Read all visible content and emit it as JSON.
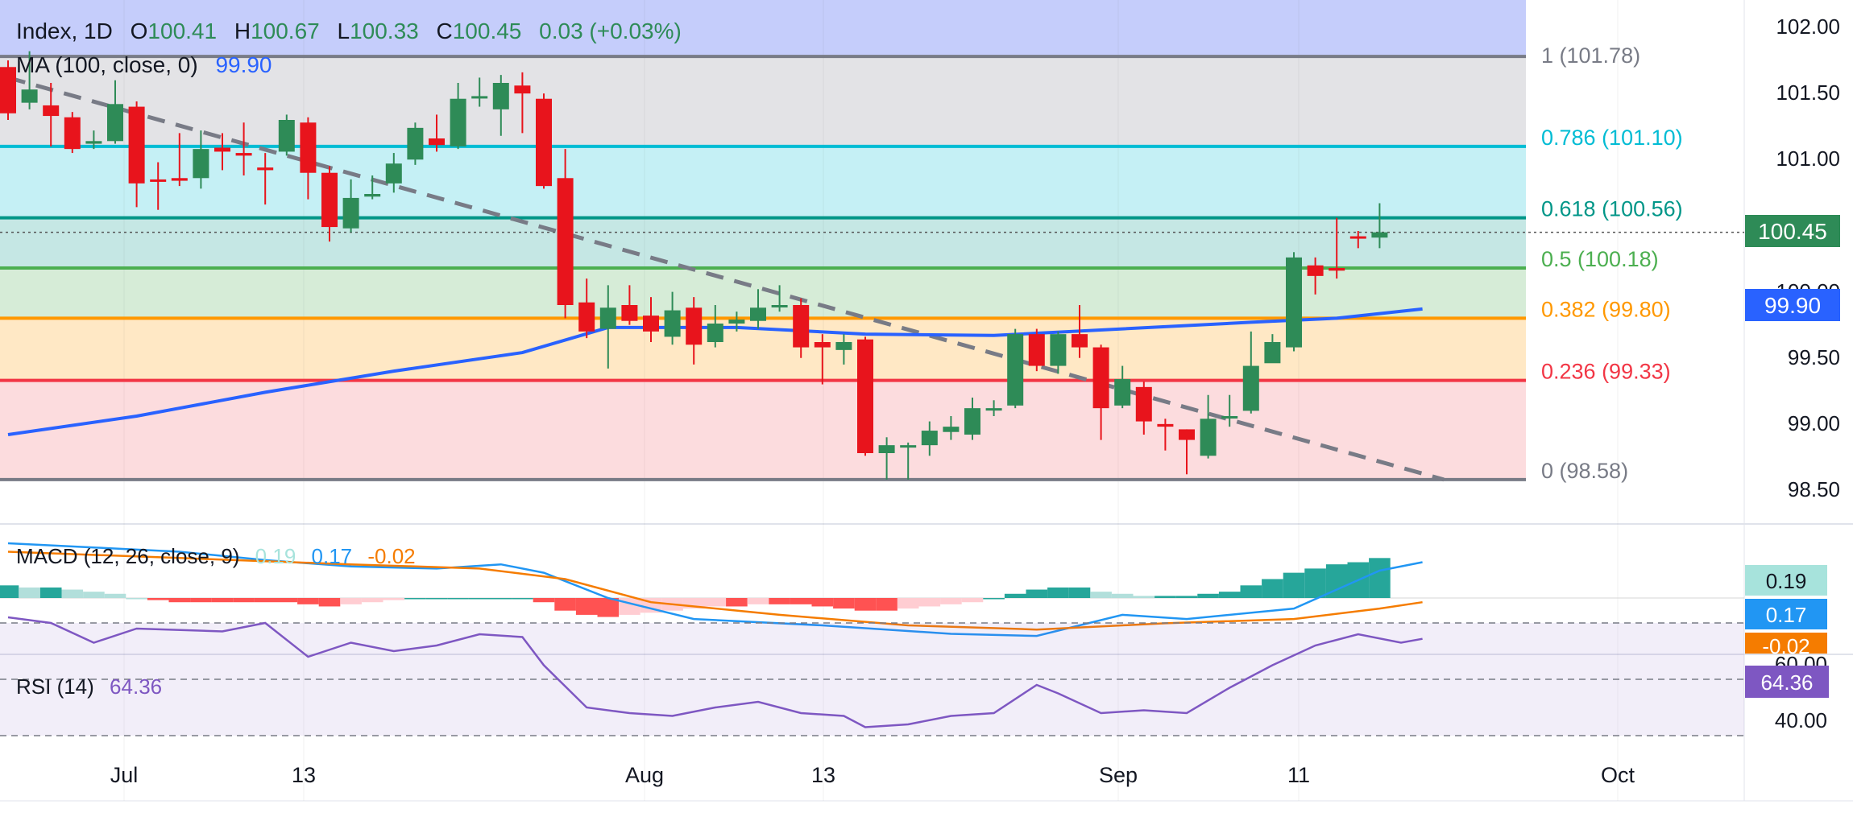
{
  "header": {
    "symbol": "Index, 1D",
    "o_label": "O",
    "o": "100.41",
    "h_label": "H",
    "h": "100.67",
    "l_label": "L",
    "l": "100.33",
    "c_label": "C",
    "c": "100.45",
    "change": "0.03 (+0.03%)"
  },
  "ma_legend": {
    "label": "MA (100, close, 0)",
    "value": "99.90"
  },
  "macd_legend": {
    "label": "MACD (12, 26, close, 9)",
    "hist": "0.19",
    "macd": "0.17",
    "signal": "-0.02"
  },
  "rsi_legend": {
    "label": "RSI (14)",
    "value": "64.36"
  },
  "price_axis": {
    "ticks": [
      "102.00",
      "101.50",
      "101.00",
      "100.00",
      "99.50",
      "99.00",
      "98.50"
    ]
  },
  "rsi_axis": {
    "ticks": [
      "60.00",
      "40.00"
    ]
  },
  "time_axis": {
    "labels": [
      "Jul",
      "13",
      "Aug",
      "13",
      "Sep",
      "11",
      "Oct"
    ]
  },
  "badges": {
    "price": "100.45",
    "ma": "99.90",
    "macd_hist": "0.19",
    "macd": "0.17",
    "macd_signal": "-0.02",
    "rsi": "64.36"
  },
  "colors": {
    "up": "#2e8b57",
    "down": "#e8141c",
    "ma": "#2962ff",
    "macd": "#2196f3",
    "signal": "#f57c00",
    "rsi": "#7e57c2",
    "fib_1": "#787b86",
    "fib_786": "#00bcd4",
    "fib_618": "#009688",
    "fib_5": "#4caf50",
    "fib_382": "#ff9800",
    "fib_236": "#f23645",
    "fib_0": "#787b86"
  },
  "chart_data": {
    "type": "candlestick",
    "price_range": [
      98.32,
      102.2
    ],
    "rsi_range": [
      30,
      80
    ],
    "fib_levels": [
      {
        "ratio": "1",
        "price": 101.78,
        "label": "1 (101.78)"
      },
      {
        "ratio": "0.786",
        "price": 101.1,
        "label": "0.786 (101.10)"
      },
      {
        "ratio": "0.618",
        "price": 100.56,
        "label": "0.618 (100.56)"
      },
      {
        "ratio": "0.5",
        "price": 100.18,
        "label": "0.5 (100.18)"
      },
      {
        "ratio": "0.382",
        "price": 99.8,
        "label": "0.382 (99.80)"
      },
      {
        "ratio": "0.236",
        "price": 99.33,
        "label": "0.236 (99.33)"
      },
      {
        "ratio": "0",
        "price": 98.58,
        "label": "0 (98.58)"
      }
    ],
    "trendline": {
      "start": {
        "bar": 0,
        "price": 101.62
      },
      "end": {
        "bar": 67,
        "price": 98.58
      }
    },
    "candles": [
      [
        101.7,
        101.35,
        101.75,
        101.3
      ],
      [
        101.43,
        101.53,
        101.82,
        101.38
      ],
      [
        101.41,
        101.33,
        101.58,
        101.1
      ],
      [
        101.32,
        101.08,
        101.36,
        101.05
      ],
      [
        101.12,
        101.14,
        101.22,
        101.08
      ],
      [
        101.14,
        101.42,
        101.6,
        101.12
      ],
      [
        101.4,
        100.82,
        101.44,
        100.64
      ],
      [
        100.85,
        100.84,
        100.98,
        100.62
      ],
      [
        100.86,
        100.84,
        101.2,
        100.8
      ],
      [
        100.86,
        101.08,
        101.22,
        100.78
      ],
      [
        101.09,
        101.06,
        101.2,
        100.92
      ],
      [
        101.05,
        101.03,
        101.28,
        100.88
      ],
      [
        100.94,
        100.92,
        101.05,
        100.66
      ],
      [
        101.06,
        101.3,
        101.34,
        101.03
      ],
      [
        101.28,
        100.9,
        101.32,
        100.7
      ],
      [
        100.9,
        100.49,
        100.95,
        100.38
      ],
      [
        100.48,
        100.71,
        100.85,
        100.45
      ],
      [
        100.72,
        100.74,
        100.88,
        100.7
      ],
      [
        100.82,
        100.97,
        101.05,
        100.75
      ],
      [
        101.0,
        101.24,
        101.28,
        100.96
      ],
      [
        101.16,
        101.11,
        101.34,
        101.06
      ],
      [
        101.1,
        101.46,
        101.58,
        101.08
      ],
      [
        101.48,
        101.48,
        101.62,
        101.4
      ],
      [
        101.38,
        101.58,
        101.64,
        101.18
      ],
      [
        101.56,
        101.5,
        101.66,
        101.2
      ],
      [
        101.46,
        100.8,
        101.5,
        100.78
      ],
      [
        100.86,
        99.9,
        101.08,
        99.8
      ],
      [
        99.92,
        99.7,
        100.1,
        99.65
      ],
      [
        99.72,
        99.88,
        100.05,
        99.42
      ],
      [
        99.9,
        99.78,
        100.05,
        99.75
      ],
      [
        99.82,
        99.7,
        99.96,
        99.62
      ],
      [
        99.66,
        99.86,
        100.0,
        99.6
      ],
      [
        99.88,
        99.6,
        99.96,
        99.45
      ],
      [
        99.62,
        99.76,
        99.9,
        99.58
      ],
      [
        99.76,
        99.79,
        99.85,
        99.7
      ],
      [
        99.78,
        99.88,
        100.02,
        99.72
      ],
      [
        99.9,
        99.9,
        100.05,
        99.85
      ],
      [
        99.9,
        99.58,
        99.95,
        99.5
      ],
      [
        99.62,
        99.58,
        99.68,
        99.3
      ],
      [
        99.56,
        99.62,
        99.68,
        99.45
      ],
      [
        99.64,
        98.78,
        99.66,
        98.76
      ],
      [
        98.78,
        98.84,
        98.9,
        98.58
      ],
      [
        98.84,
        98.84,
        98.86,
        98.58
      ],
      [
        98.84,
        98.95,
        99.02,
        98.76
      ],
      [
        98.94,
        98.98,
        99.06,
        98.88
      ],
      [
        98.92,
        99.12,
        99.2,
        98.88
      ],
      [
        99.11,
        99.12,
        99.18,
        99.06
      ],
      [
        99.14,
        99.68,
        99.72,
        99.12
      ],
      [
        99.68,
        99.44,
        99.72,
        99.4
      ],
      [
        99.44,
        99.68,
        99.7,
        99.38
      ],
      [
        99.68,
        99.58,
        99.9,
        99.5
      ],
      [
        99.58,
        99.12,
        99.6,
        98.88
      ],
      [
        99.14,
        99.34,
        99.44,
        99.12
      ],
      [
        99.28,
        99.02,
        99.32,
        98.92
      ],
      [
        99.0,
        98.98,
        99.04,
        98.8
      ],
      [
        98.96,
        98.88,
        98.96,
        98.62
      ],
      [
        98.76,
        99.04,
        99.22,
        98.74
      ],
      [
        99.06,
        99.06,
        99.22,
        98.98
      ],
      [
        99.1,
        99.44,
        99.7,
        99.08
      ],
      [
        99.46,
        99.62,
        99.68,
        99.48
      ],
      [
        99.58,
        100.26,
        100.3,
        99.55
      ],
      [
        100.2,
        100.12,
        100.26,
        99.98
      ],
      [
        100.18,
        100.16,
        100.56,
        100.1
      ],
      [
        100.42,
        100.41,
        100.46,
        100.33
      ],
      [
        100.41,
        100.45,
        100.67,
        100.33
      ]
    ],
    "ma100": [
      [
        0,
        98.92
      ],
      [
        6,
        99.06
      ],
      [
        12,
        99.24
      ],
      [
        18,
        99.4
      ],
      [
        24,
        99.54
      ],
      [
        28,
        99.73
      ],
      [
        34,
        99.73
      ],
      [
        40,
        99.68
      ],
      [
        46,
        99.67
      ],
      [
        52,
        99.72
      ],
      [
        58,
        99.77
      ],
      [
        62,
        99.8
      ],
      [
        66,
        99.87
      ]
    ],
    "macd_hist_range": [
      -0.16,
      0.19
    ],
    "macd_hist": [
      0.06,
      0.05,
      0.05,
      0.04,
      0.03,
      0.02,
      0.0,
      -0.01,
      -0.02,
      -0.02,
      -0.02,
      -0.02,
      -0.02,
      -0.02,
      -0.03,
      -0.04,
      -0.03,
      -0.02,
      -0.01,
      0.0,
      0.0,
      0.0,
      0.0,
      0.0,
      0.0,
      -0.02,
      -0.06,
      -0.08,
      -0.09,
      -0.08,
      -0.07,
      -0.06,
      -0.05,
      -0.04,
      -0.04,
      -0.03,
      -0.03,
      -0.03,
      -0.04,
      -0.05,
      -0.06,
      -0.06,
      -0.05,
      -0.04,
      -0.03,
      -0.02,
      0.0,
      0.02,
      0.04,
      0.05,
      0.05,
      0.03,
      0.02,
      0.01,
      0.01,
      0.01,
      0.02,
      0.03,
      0.06,
      0.09,
      0.12,
      0.14,
      0.16,
      0.17,
      0.19
    ],
    "macd_line": [
      [
        0,
        0.26
      ],
      [
        4,
        0.24
      ],
      [
        8,
        0.22
      ],
      [
        12,
        0.18
      ],
      [
        16,
        0.15
      ],
      [
        20,
        0.14
      ],
      [
        23,
        0.16
      ],
      [
        25,
        0.12
      ],
      [
        28,
        0.0
      ],
      [
        32,
        -0.1
      ],
      [
        38,
        -0.13
      ],
      [
        44,
        -0.17
      ],
      [
        48,
        -0.18
      ],
      [
        52,
        -0.08
      ],
      [
        55,
        -0.1
      ],
      [
        60,
        -0.05
      ],
      [
        64,
        0.13
      ],
      [
        66,
        0.17
      ]
    ],
    "signal_line": [
      [
        0,
        0.22
      ],
      [
        8,
        0.19
      ],
      [
        16,
        0.16
      ],
      [
        22,
        0.14
      ],
      [
        26,
        0.09
      ],
      [
        30,
        -0.02
      ],
      [
        36,
        -0.08
      ],
      [
        42,
        -0.13
      ],
      [
        48,
        -0.15
      ],
      [
        54,
        -0.12
      ],
      [
        60,
        -0.1
      ],
      [
        64,
        -0.05
      ],
      [
        66,
        -0.02
      ]
    ],
    "rsi": [
      [
        0,
        72
      ],
      [
        2,
        70
      ],
      [
        4,
        63
      ],
      [
        6,
        68
      ],
      [
        10,
        67
      ],
      [
        12,
        70
      ],
      [
        14,
        58
      ],
      [
        16,
        63
      ],
      [
        18,
        60
      ],
      [
        20,
        62
      ],
      [
        22,
        66
      ],
      [
        24,
        65
      ],
      [
        25,
        55
      ],
      [
        27,
        40
      ],
      [
        29,
        38
      ],
      [
        31,
        37
      ],
      [
        33,
        40
      ],
      [
        35,
        42
      ],
      [
        37,
        38
      ],
      [
        39,
        37
      ],
      [
        40,
        33
      ],
      [
        42,
        34
      ],
      [
        44,
        37
      ],
      [
        46,
        38
      ],
      [
        48,
        48
      ],
      [
        49,
        45
      ],
      [
        51,
        38
      ],
      [
        53,
        39
      ],
      [
        55,
        38
      ],
      [
        57,
        47
      ],
      [
        59,
        55
      ],
      [
        61,
        62
      ],
      [
        63,
        66
      ],
      [
        65,
        63
      ],
      [
        66,
        64.36
      ]
    ]
  }
}
